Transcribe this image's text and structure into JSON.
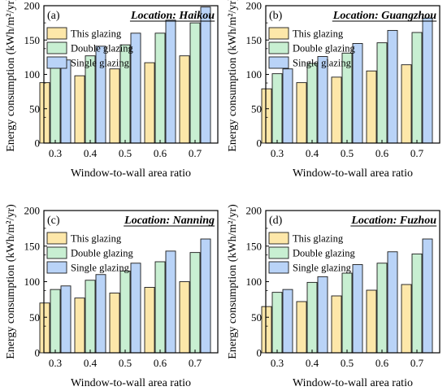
{
  "colors": {
    "this_glazing": "#fde7a9",
    "double_glazing": "#c8efd2",
    "single_glazing": "#b9d3f7",
    "edge": "#1a1a1a"
  },
  "chart_data": [
    {
      "type": "bar",
      "panel": "(a)",
      "location": "Location: Haikou",
      "xlabel": "Window-to-wall area ratio",
      "ylabel": "Energy consumption (kWh/m²/yr)",
      "ylim": [
        0,
        200
      ],
      "yticks": [
        0,
        50,
        100,
        150,
        200
      ],
      "categories": [
        "0.3",
        "0.4",
        "0.5",
        "0.6",
        "0.7"
      ],
      "legend_position": "top-left",
      "series": [
        {
          "name": "This glazing",
          "color_key": "this_glazing",
          "values": [
            88,
            98,
            108,
            117,
            127
          ]
        },
        {
          "name": "Double glazing",
          "color_key": "double_glazing",
          "values": [
            110,
            127,
            143,
            160,
            175
          ]
        },
        {
          "name": "Single glazing",
          "color_key": "single_glazing",
          "values": [
            121,
            141,
            160,
            179,
            198
          ]
        }
      ]
    },
    {
      "type": "bar",
      "panel": "(b)",
      "location": "Location: Guangzhou",
      "xlabel": "Window-to-wall area ratio",
      "ylabel": "Energy consumption (kWh/m²/yr)",
      "ylim": [
        0,
        200
      ],
      "yticks": [
        0,
        50,
        100,
        150,
        200
      ],
      "categories": [
        "0.3",
        "0.4",
        "0.5",
        "0.6",
        "0.7"
      ],
      "legend_position": "top-left",
      "series": [
        {
          "name": "This glazing",
          "color_key": "this_glazing",
          "values": [
            79,
            88,
            96,
            105,
            114
          ]
        },
        {
          "name": "Double glazing",
          "color_key": "double_glazing",
          "values": [
            101,
            116,
            131,
            146,
            161
          ]
        },
        {
          "name": "Single glazing",
          "color_key": "single_glazing",
          "values": [
            108,
            126,
            145,
            164,
            182
          ]
        }
      ]
    },
    {
      "type": "bar",
      "panel": "(c)",
      "location": "Location: Nanning",
      "xlabel": "Window-to-wall area ratio",
      "ylabel": "Energy consumption (kWh/m²/yr)",
      "ylim": [
        0,
        200
      ],
      "yticks": [
        0,
        50,
        100,
        150,
        200
      ],
      "categories": [
        "0.3",
        "0.4",
        "0.5",
        "0.6",
        "0.7"
      ],
      "legend_position": "top-left",
      "series": [
        {
          "name": "This glazing",
          "color_key": "this_glazing",
          "values": [
            70,
            77,
            84,
            92,
            100
          ]
        },
        {
          "name": "Double glazing",
          "color_key": "double_glazing",
          "values": [
            89,
            102,
            115,
            128,
            141
          ]
        },
        {
          "name": "Single glazing",
          "color_key": "single_glazing",
          "values": [
            94,
            110,
            126,
            143,
            160
          ]
        }
      ]
    },
    {
      "type": "bar",
      "panel": "(d)",
      "location": "Location: Fuzhou",
      "xlabel": "Window-to-wall area ratio",
      "ylabel": "Energy consumption (kWh/m²/yr)",
      "ylim": [
        0,
        200
      ],
      "yticks": [
        0,
        50,
        100,
        150,
        200
      ],
      "categories": [
        "0.3",
        "0.4",
        "0.5",
        "0.6",
        "0.7"
      ],
      "legend_position": "top-left",
      "series": [
        {
          "name": "This glazing",
          "color_key": "this_glazing",
          "values": [
            65,
            72,
            80,
            88,
            96
          ]
        },
        {
          "name": "Double glazing",
          "color_key": "double_glazing",
          "values": [
            85,
            99,
            112,
            126,
            139
          ]
        },
        {
          "name": "Single glazing",
          "color_key": "single_glazing",
          "values": [
            89,
            107,
            124,
            142,
            160
          ]
        }
      ]
    }
  ]
}
